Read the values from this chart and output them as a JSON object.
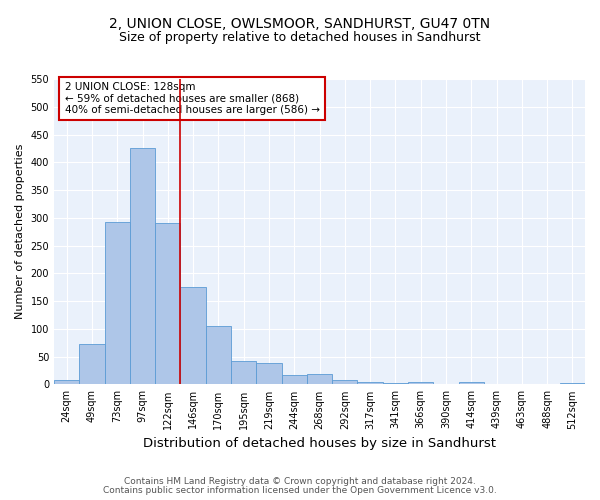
{
  "title": "2, UNION CLOSE, OWLSMOOR, SANDHURST, GU47 0TN",
  "subtitle": "Size of property relative to detached houses in Sandhurst",
  "xlabel": "Distribution of detached houses by size in Sandhurst",
  "ylabel": "Number of detached properties",
  "categories": [
    "24sqm",
    "49sqm",
    "73sqm",
    "97sqm",
    "122sqm",
    "146sqm",
    "170sqm",
    "195sqm",
    "219sqm",
    "244sqm",
    "268sqm",
    "292sqm",
    "317sqm",
    "341sqm",
    "366sqm",
    "390sqm",
    "414sqm",
    "439sqm",
    "463sqm",
    "488sqm",
    "512sqm"
  ],
  "values": [
    8,
    72,
    292,
    425,
    290,
    175,
    105,
    43,
    38,
    17,
    18,
    8,
    4,
    3,
    4,
    0,
    4,
    0,
    0,
    0,
    3
  ],
  "bar_color": "#aec6e8",
  "bar_edge_color": "#5b9bd5",
  "bar_width": 1.0,
  "vline_color": "#cc0000",
  "annotation_text": "2 UNION CLOSE: 128sqm\n← 59% of detached houses are smaller (868)\n40% of semi-detached houses are larger (586) →",
  "annotation_box_color": "#ffffff",
  "annotation_box_edge": "#cc0000",
  "ylim": [
    0,
    550
  ],
  "yticks": [
    0,
    50,
    100,
    150,
    200,
    250,
    300,
    350,
    400,
    450,
    500,
    550
  ],
  "bg_color": "#eaf1fb",
  "grid_color": "#ffffff",
  "footnote1": "Contains HM Land Registry data © Crown copyright and database right 2024.",
  "footnote2": "Contains public sector information licensed under the Open Government Licence v3.0.",
  "title_fontsize": 10,
  "subtitle_fontsize": 9,
  "xlabel_fontsize": 9.5,
  "ylabel_fontsize": 8,
  "tick_fontsize": 7,
  "annotation_fontsize": 7.5,
  "footnote_fontsize": 6.5
}
